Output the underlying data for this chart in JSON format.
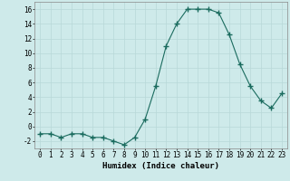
{
  "x": [
    0,
    1,
    2,
    3,
    4,
    5,
    6,
    7,
    8,
    9,
    10,
    11,
    12,
    13,
    14,
    15,
    16,
    17,
    18,
    19,
    20,
    21,
    22,
    23
  ],
  "y": [
    -1,
    -1,
    -1.5,
    -1,
    -1,
    -1.5,
    -1.5,
    -2,
    -2.5,
    -1.5,
    1,
    5.5,
    11,
    14,
    16,
    16,
    16,
    15.5,
    12.5,
    8.5,
    5.5,
    3.5,
    2.5,
    4.5
  ],
  "title": "",
  "xlabel": "Humidex (Indice chaleur)",
  "ylabel": "",
  "ylim": [
    -3,
    17
  ],
  "xlim": [
    -0.5,
    23.5
  ],
  "yticks": [
    -2,
    0,
    2,
    4,
    6,
    8,
    10,
    12,
    14,
    16
  ],
  "xticks": [
    0,
    1,
    2,
    3,
    4,
    5,
    6,
    7,
    8,
    9,
    10,
    11,
    12,
    13,
    14,
    15,
    16,
    17,
    18,
    19,
    20,
    21,
    22,
    23
  ],
  "line_color": "#1a6b5e",
  "marker": "+",
  "marker_size": 4,
  "bg_color": "#ceeaea",
  "grid_color": "#b8d8d8",
  "tick_fontsize": 5.5,
  "xlabel_fontsize": 6.5
}
